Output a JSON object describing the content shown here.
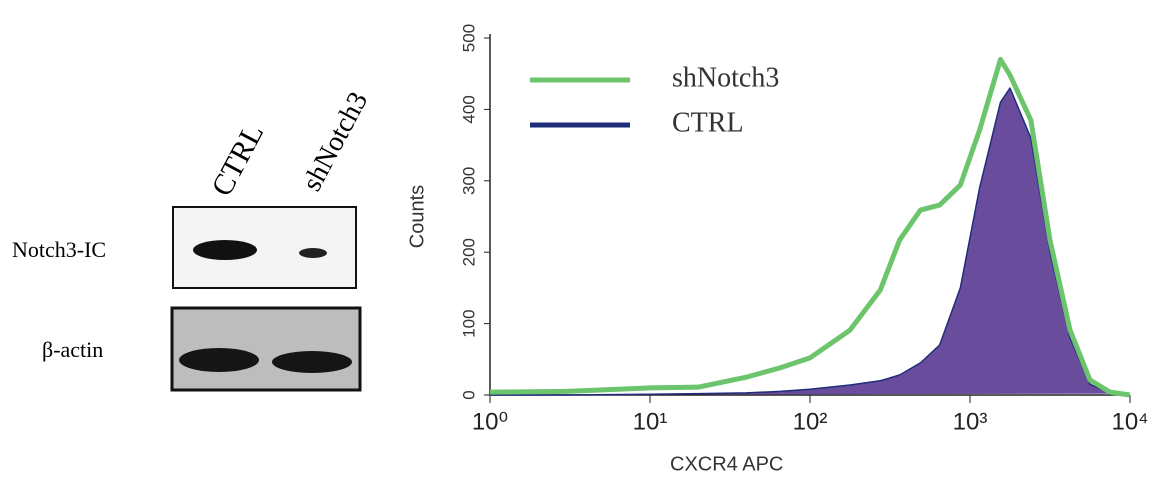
{
  "blot": {
    "lanes": [
      "CTRL",
      "shNotch3"
    ],
    "rows": [
      "Notch3-IC",
      "β-actin"
    ]
  },
  "chart_data": {
    "type": "line",
    "xlabel": "CXCR4 APC",
    "ylabel": "Counts",
    "xscale": "log",
    "xlim": [
      1,
      10000
    ],
    "xticks": [
      {
        "value": 1,
        "label": "10⁰"
      },
      {
        "value": 10,
        "label": "10¹"
      },
      {
        "value": 100,
        "label": "10²"
      },
      {
        "value": 1000,
        "label": "10³"
      },
      {
        "value": 10000,
        "label": "10⁴"
      }
    ],
    "ylim": [
      0,
      500
    ],
    "yticks": [
      0,
      100,
      200,
      300,
      400,
      500
    ],
    "legend": "upper-left",
    "x": [
      1,
      3,
      10,
      20,
      40,
      65,
      100,
      178,
      275,
      363,
      490,
      646,
      870,
      1148,
      1550,
      1778,
      2400,
      3160,
      4220,
      5620,
      7500,
      10000
    ],
    "series": [
      {
        "name": "shNotch3",
        "color": "#6cc46c",
        "values": [
          4,
          5,
          10,
          11,
          25,
          38,
          52,
          91,
          147,
          217,
          259,
          266,
          294,
          371,
          470,
          448,
          385,
          217,
          91,
          21,
          4,
          0
        ]
      },
      {
        "name": "CTRL",
        "color": "#1f2d7a",
        "fill": "#6a4c9c",
        "values": [
          0,
          0,
          1,
          2,
          3,
          5,
          8,
          14,
          20,
          28,
          45,
          70,
          150,
          290,
          410,
          430,
          360,
          200,
          80,
          15,
          3,
          2
        ]
      }
    ]
  }
}
